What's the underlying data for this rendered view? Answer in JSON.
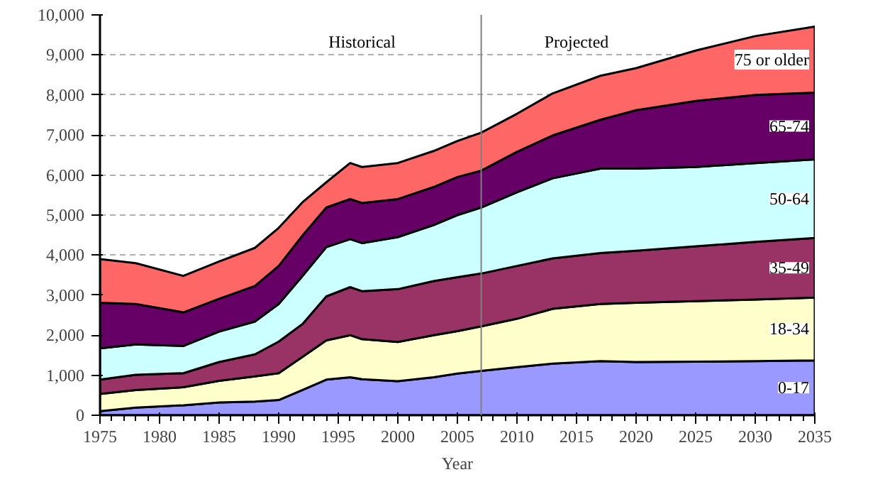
{
  "chart_data": {
    "type": "area",
    "stacked": true,
    "xlabel": "Year",
    "x": [
      1975,
      1978,
      1982,
      1985,
      1988,
      1990,
      1992,
      1994,
      1996,
      1997,
      2000,
      2003,
      2005,
      2007,
      2010,
      2013,
      2017,
      2020,
      2025,
      2030,
      2035
    ],
    "series": [
      {
        "name": "0-17",
        "color": "#9999ff",
        "values": [
          100,
          190,
          250,
          320,
          340,
          380,
          630,
          890,
          950,
          900,
          850,
          950,
          1040,
          1110,
          1200,
          1290,
          1350,
          1330,
          1340,
          1350,
          1370
        ]
      },
      {
        "name": "18-34",
        "color": "#ffffcc",
        "values": [
          430,
          440,
          450,
          540,
          630,
          670,
          830,
          980,
          1050,
          1000,
          980,
          1050,
          1060,
          1110,
          1210,
          1370,
          1430,
          1480,
          1510,
          1540,
          1570
        ]
      },
      {
        "name": "35-49",
        "color": "#993366",
        "values": [
          360,
          380,
          350,
          470,
          550,
          790,
          820,
          1100,
          1200,
          1200,
          1320,
          1350,
          1350,
          1320,
          1320,
          1260,
          1270,
          1300,
          1370,
          1440,
          1490
        ]
      },
      {
        "name": "50-64",
        "color": "#ccffff",
        "values": [
          780,
          760,
          680,
          760,
          820,
          940,
          1200,
          1230,
          1200,
          1200,
          1300,
          1400,
          1550,
          1650,
          1840,
          2000,
          2110,
          2050,
          1980,
          1970,
          1960
        ]
      },
      {
        "name": "65-74",
        "color": "#660066",
        "values": [
          1140,
          1010,
          840,
          820,
          890,
          950,
          1010,
          990,
          1000,
          1000,
          950,
          950,
          950,
          920,
          1010,
          1070,
          1220,
          1460,
          1650,
          1700,
          1670
        ]
      },
      {
        "name": "75 or older",
        "color": "#ff6666",
        "values": [
          1090,
          1020,
          910,
          930,
          950,
          950,
          830,
          630,
          900,
          900,
          900,
          900,
          900,
          950,
          950,
          1050,
          1100,
          1050,
          1260,
          1470,
          1650
        ]
      }
    ],
    "xlim": [
      1975,
      2035
    ],
    "xticks": [
      1975,
      1980,
      1985,
      1990,
      1995,
      2000,
      2005,
      2010,
      2015,
      2020,
      2025,
      2030,
      2035
    ],
    "ylim": [
      0,
      10000
    ],
    "yticks": [
      0,
      {
        "value": 1000,
        "label": "1,000"
      },
      {
        "value": 2000,
        "label": "2,000"
      },
      {
        "value": 3000,
        "label": "3,000"
      },
      {
        "value": 4000,
        "label": "4,000"
      },
      {
        "value": 5000,
        "label": "5,000"
      },
      {
        "value": 6000,
        "label": "6,000"
      },
      {
        "value": 7000,
        "label": "7,000"
      },
      {
        "value": 8000,
        "label": "8,000"
      },
      {
        "value": 9000,
        "label": "9,000"
      },
      {
        "value": 10000,
        "label": "10,000"
      }
    ],
    "grid": "y",
    "ref_lines": [
      {
        "axis": "x",
        "value": 2007,
        "color": "#808080"
      }
    ],
    "annotations": [
      "Historical",
      "Projected"
    ]
  }
}
